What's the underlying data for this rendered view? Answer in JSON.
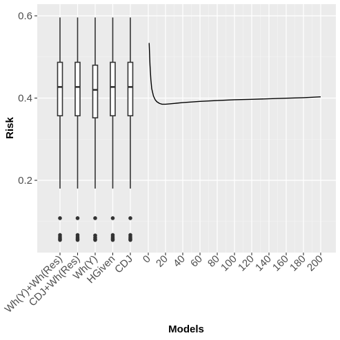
{
  "chart_data": {
    "type": "boxplot+line",
    "xlabel": "Models",
    "ylabel": "Risk",
    "ylim": [
      0.03,
      0.625
    ],
    "y_ticks": [
      0.2,
      0.4,
      0.6
    ],
    "y_tick_labels": [
      "0.2",
      "0.4",
      "0.6"
    ],
    "grid": true,
    "legend": "none",
    "box_categories": [
      "Wh(Y)+Wh(Res)",
      "CDJ+Wh(Res)",
      "Wh(Y)",
      "HGiven",
      "CDJ"
    ],
    "boxes": [
      {
        "label": "Wh(Y)+Wh(Res)",
        "whisker_low": 0.18,
        "q1": 0.357,
        "median": 0.427,
        "q3": 0.487,
        "whisker_high": 0.596,
        "outliers": [
          0.108,
          0.067,
          0.062,
          0.058,
          0.055
        ]
      },
      {
        "label": "CDJ+Wh(Res)",
        "whisker_low": 0.18,
        "q1": 0.357,
        "median": 0.427,
        "q3": 0.487,
        "whisker_high": 0.596,
        "outliers": [
          0.108,
          0.067,
          0.062,
          0.058,
          0.055
        ]
      },
      {
        "label": "Wh(Y)",
        "whisker_low": 0.18,
        "q1": 0.352,
        "median": 0.42,
        "q3": 0.48,
        "whisker_high": 0.596,
        "outliers": [
          0.108,
          0.066,
          0.061,
          0.057,
          0.055
        ]
      },
      {
        "label": "HGiven",
        "whisker_low": 0.18,
        "q1": 0.357,
        "median": 0.427,
        "q3": 0.487,
        "whisker_high": 0.596,
        "outliers": [
          0.108,
          0.067,
          0.062,
          0.058,
          0.055
        ]
      },
      {
        "label": "CDJ",
        "whisker_low": 0.18,
        "q1": 0.357,
        "median": 0.427,
        "q3": 0.487,
        "whisker_high": 0.596,
        "outliers": [
          0.108,
          0.067,
          0.062,
          0.058,
          0.055
        ]
      }
    ],
    "line_x_ticks": [
      0,
      20,
      40,
      60,
      80,
      100,
      120,
      140,
      160,
      180,
      200
    ],
    "line": {
      "x": [
        1,
        2,
        3,
        4,
        6,
        8,
        10,
        13,
        16,
        20,
        30,
        40,
        60,
        80,
        100,
        120,
        150,
        180,
        200
      ],
      "y": [
        0.534,
        0.48,
        0.445,
        0.423,
        0.405,
        0.396,
        0.391,
        0.387,
        0.385,
        0.385,
        0.387,
        0.389,
        0.392,
        0.394,
        0.396,
        0.397,
        0.399,
        0.401,
        0.403
      ]
    }
  }
}
